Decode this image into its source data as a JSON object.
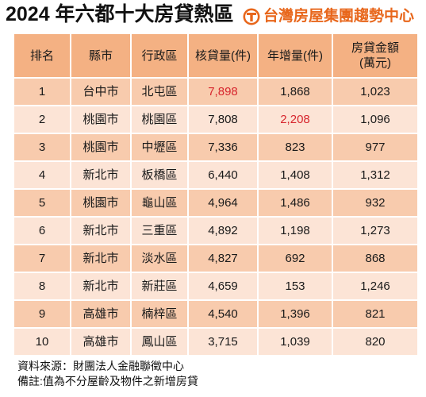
{
  "brand": {
    "name": "台灣房屋集團趨勢中心",
    "icon": "taiwan-realty-logo-icon",
    "color": "#e8671c"
  },
  "colors": {
    "header_bg": "#f4b183",
    "row_band_a": "#f8cbad",
    "row_band_b": "#fce4d6",
    "highlight_text": "#d7262e",
    "text": "#1a1a1a"
  },
  "chart_data": {
    "type": "table",
    "title": "2024 年六都十大房貸熱區",
    "columns": [
      "排名",
      "縣市",
      "行政區",
      "核貸量(件)",
      "年增量(件)",
      "房貸金額\n(萬元)"
    ],
    "rows": [
      [
        "1",
        "台中市",
        "北屯區",
        "7,898",
        "1,868",
        "1,023"
      ],
      [
        "2",
        "桃園市",
        "桃園區",
        "7,808",
        "2,208",
        "1,096"
      ],
      [
        "3",
        "桃園市",
        "中壢區",
        "7,336",
        "823",
        "977"
      ],
      [
        "4",
        "新北市",
        "板橋區",
        "6,440",
        "1,408",
        "1,312"
      ],
      [
        "5",
        "桃園市",
        "龜山區",
        "4,964",
        "1,486",
        "932"
      ],
      [
        "6",
        "新北市",
        "三重區",
        "4,892",
        "1,198",
        "1,273"
      ],
      [
        "7",
        "新北市",
        "淡水區",
        "4,827",
        "692",
        "868"
      ],
      [
        "8",
        "新北市",
        "新莊區",
        "4,659",
        "153",
        "1,246"
      ],
      [
        "9",
        "高雄市",
        "楠梓區",
        "4,540",
        "1,396",
        "821"
      ],
      [
        "10",
        "高雄市",
        "鳳山區",
        "3,715",
        "1,039",
        "820"
      ]
    ],
    "highlighted_cells": [
      {
        "row": 0,
        "column": 3
      },
      {
        "row": 1,
        "column": 4
      }
    ]
  },
  "footer": {
    "source": "資料來源：財團法人金融聯徵中心",
    "note": "備註:值為不分屋齡及物件之新增房貸"
  }
}
